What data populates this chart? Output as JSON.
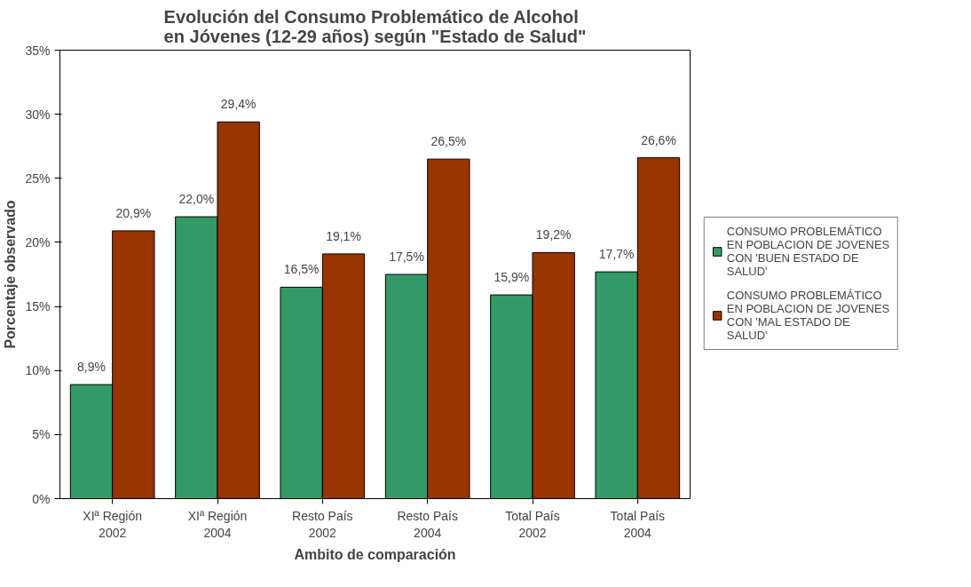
{
  "chart_data": {
    "type": "bar",
    "title": "Evolución del Consumo Problemático de Alcohol\nen Jóvenes (12-29 años) según \"Estado de Salud\"",
    "xlabel": "Ambito de comparación",
    "ylabel": "Porcentaje observado",
    "categories": [
      "XIª Región\n2002",
      "XIª Región\n2004",
      "Resto País\n2002",
      "Resto País\n2004",
      "Total País\n2002",
      "Total País\n2004"
    ],
    "series": [
      {
        "name": "CONSUMO PROBLEMÁTICO  EN POBLACION DE JOVENES CON 'BUEN ESTADO DE SALUD'",
        "color": "#339966",
        "values": [
          8.9,
          22.0,
          16.5,
          17.5,
          15.9,
          17.7
        ],
        "value_labels": [
          "8,9%",
          "22,0%",
          "16,5%",
          "17,5%",
          "15,9%",
          "17,7%"
        ]
      },
      {
        "name": "CONSUMO PROBLEMÁTICO  EN POBLACION DE JOVENES CON 'MAL ESTADO DE SALUD'",
        "color": "#993300",
        "values": [
          20.9,
          29.4,
          19.1,
          26.5,
          19.2,
          26.6
        ],
        "value_labels": [
          "20,9%",
          "29,4%",
          "19,1%",
          "26,5%",
          "19,2%",
          "26,6%"
        ]
      }
    ],
    "ylim": [
      0,
      35
    ],
    "yticks": [
      {
        "value": 0,
        "label": "0%"
      },
      {
        "value": 5,
        "label": "5%"
      },
      {
        "value": 10,
        "label": "10%"
      },
      {
        "value": 15,
        "label": "15%"
      },
      {
        "value": 20,
        "label": "20%"
      },
      {
        "value": 25,
        "label": "25%"
      },
      {
        "value": 30,
        "label": "30%"
      },
      {
        "value": 35,
        "label": "35%"
      }
    ],
    "legend": "right",
    "grid": false
  }
}
